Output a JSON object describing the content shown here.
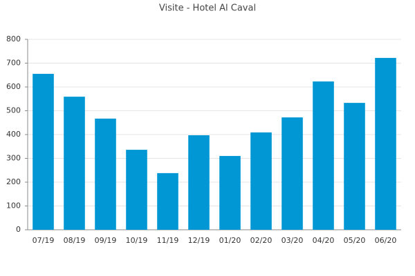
{
  "chart_data": {
    "type": "bar",
    "title": "Visite - Hotel Al Caval",
    "categories": [
      "07/19",
      "08/19",
      "09/19",
      "10/19",
      "11/19",
      "12/19",
      "01/20",
      "02/20",
      "03/20",
      "04/20",
      "05/20",
      "06/20"
    ],
    "values": [
      655,
      559,
      467,
      336,
      238,
      397,
      310,
      409,
      472,
      623,
      533,
      722
    ],
    "color": "#0097d4",
    "ylim": [
      0,
      800
    ],
    "yticks": [
      0,
      100,
      200,
      300,
      400,
      500,
      600,
      700,
      800
    ],
    "grid": true
  }
}
